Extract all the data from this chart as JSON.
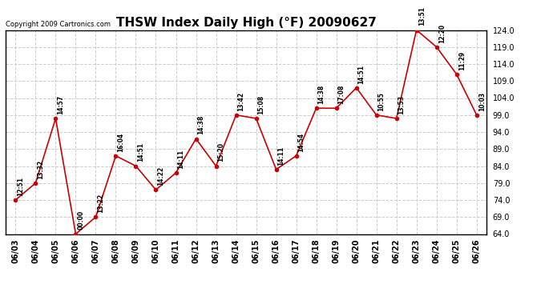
{
  "title": "THSW Index Daily High (°F) 20090627",
  "copyright": "Copyright 2009 Cartronics.com",
  "dates": [
    "06/03",
    "06/04",
    "06/05",
    "06/06",
    "06/07",
    "06/08",
    "06/09",
    "06/10",
    "06/11",
    "06/12",
    "06/13",
    "06/14",
    "06/15",
    "06/16",
    "06/17",
    "06/18",
    "06/19",
    "06/20",
    "06/21",
    "06/22",
    "06/23",
    "06/24",
    "06/25",
    "06/26"
  ],
  "values": [
    74.0,
    79.0,
    98.0,
    64.0,
    69.0,
    87.0,
    84.0,
    77.0,
    82.0,
    92.0,
    84.0,
    99.0,
    98.0,
    83.0,
    87.0,
    101.0,
    101.0,
    107.0,
    99.0,
    98.0,
    124.0,
    119.0,
    111.0,
    99.0
  ],
  "time_labels": [
    "12:51",
    "13:32",
    "14:57",
    "00:00",
    "13:22",
    "16:04",
    "14:51",
    "14:22",
    "14:11",
    "14:38",
    "15:20",
    "13:42",
    "15:08",
    "14:11",
    "14:54",
    "14:38",
    "17:08",
    "14:51",
    "10:55",
    "13:53",
    "13:51",
    "12:20",
    "11:29",
    "10:03"
  ],
  "ylim": [
    64.0,
    124.0
  ],
  "yticks": [
    64.0,
    69.0,
    74.0,
    79.0,
    84.0,
    89.0,
    94.0,
    99.0,
    104.0,
    109.0,
    114.0,
    119.0,
    124.0
  ],
  "line_color": "#cc0000",
  "marker_color": "#cc0000",
  "bg_color": "#ffffff",
  "plot_bg_color": "#ffffff",
  "grid_color": "#cccccc",
  "title_fontsize": 11,
  "copyright_fontsize": 6,
  "label_fontsize": 5.5,
  "tick_fontsize": 7
}
